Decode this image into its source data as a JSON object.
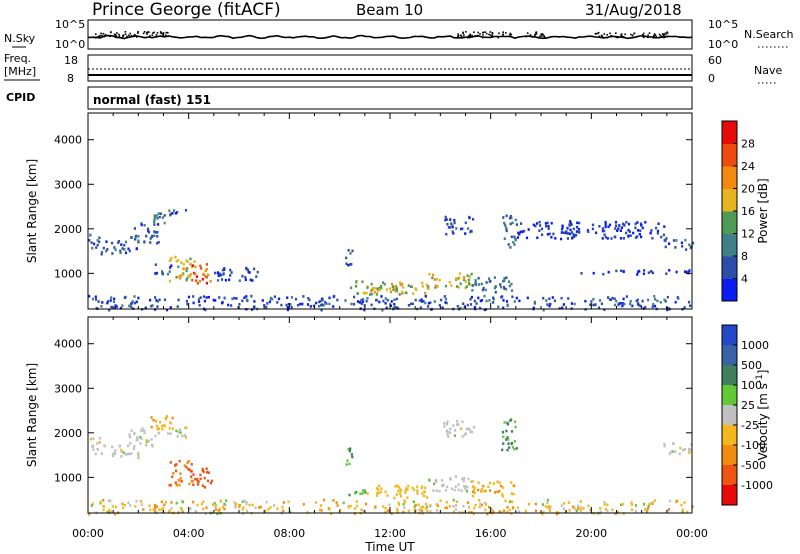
{
  "header": {
    "station": "Prince George (fitACF)",
    "beam": "Beam 10",
    "date": "31/Aug/2018"
  },
  "status_panels": {
    "nsky_label": "N.Sky",
    "nsearch_label": "N.Search",
    "nsky_ticks": [
      "10^5",
      "10^0"
    ],
    "nsearch_ticks": [
      "10^5",
      "10^0"
    ],
    "freq_label": "Freq.",
    "freq_unit": "[MHz]",
    "freq_ticks": [
      "18",
      "8"
    ],
    "nave_label": "Nave",
    "nave_ticks": [
      "60",
      "0"
    ],
    "cpid_label": "CPID",
    "cpid_value": "normal (fast) 151"
  },
  "x_axis": {
    "label": "Time UT",
    "ticks": [
      "00:00",
      "04:00",
      "08:00",
      "12:00",
      "16:00",
      "20:00",
      "00:00"
    ]
  },
  "colors": {
    "power_scale": [
      "#0a1cf0",
      "#2d4ea8",
      "#3f7f8a",
      "#4f9a55",
      "#e6b41e",
      "#f28a12",
      "#ee4b0e",
      "#e60a0a"
    ],
    "velocity_scale": [
      "#2348c8",
      "#3a62a8",
      "#3f7f60",
      "#62c838",
      "#c0c0c0",
      "#f4b81e",
      "#f28c10",
      "#ee5512",
      "#e60a0a"
    ],
    "ground_scatter": "#c0c0c0"
  },
  "chart_data": [
    {
      "type": "heatmap",
      "title": "",
      "xlabel": "Time UT",
      "ylabel": "Slant Range [km]",
      "xlim": [
        0,
        24
      ],
      "ylim": [
        200,
        4600
      ],
      "yticks": [
        "1000",
        "2000",
        "3000",
        "4000"
      ],
      "colorbar": {
        "label": "Power [dB]",
        "ticks": [
          "4",
          "8",
          "12",
          "16",
          "20",
          "24",
          "28"
        ],
        "range": [
          0,
          32
        ]
      },
      "regions": [
        {
          "t0": 0.0,
          "t1": 0.5,
          "r0": 1550,
          "r1": 1950,
          "power": 7
        },
        {
          "t0": 0.5,
          "t1": 2.0,
          "r0": 1450,
          "r1": 1750,
          "power": 6
        },
        {
          "t0": 1.6,
          "t1": 2.8,
          "r0": 1700,
          "r1": 2150,
          "power": 6
        },
        {
          "t0": 2.4,
          "t1": 3.2,
          "r0": 2150,
          "r1": 2450,
          "power": 10
        },
        {
          "t0": 3.0,
          "t1": 3.9,
          "r0": 2300,
          "r1": 2450,
          "power": 6
        },
        {
          "t0": 2.6,
          "t1": 3.4,
          "r0": 1000,
          "r1": 1250,
          "power": 6
        },
        {
          "t0": 3.2,
          "t1": 4.2,
          "r0": 850,
          "r1": 1400,
          "power": 18
        },
        {
          "t0": 4.0,
          "t1": 4.9,
          "r0": 800,
          "r1": 1250,
          "power": 26
        },
        {
          "t0": 4.9,
          "t1": 6.8,
          "r0": 850,
          "r1": 1150,
          "power": 5
        },
        {
          "t0": 10.2,
          "t1": 10.5,
          "r0": 1200,
          "r1": 1700,
          "power": 7
        },
        {
          "t0": 10.3,
          "t1": 13.5,
          "r0": 550,
          "r1": 850,
          "power": 16
        },
        {
          "t0": 11.2,
          "t1": 12.6,
          "r0": 600,
          "r1": 800,
          "power": 19
        },
        {
          "t0": 13.5,
          "t1": 15.2,
          "r0": 700,
          "r1": 1050,
          "power": 17
        },
        {
          "t0": 15.2,
          "t1": 16.9,
          "r0": 600,
          "r1": 950,
          "power": 8
        },
        {
          "t0": 14.1,
          "t1": 15.3,
          "r0": 1900,
          "r1": 2300,
          "power": 6
        },
        {
          "t0": 16.4,
          "t1": 17.0,
          "r0": 1600,
          "r1": 2350,
          "power": 8
        },
        {
          "t0": 17.0,
          "t1": 23.0,
          "r0": 1800,
          "r1": 2200,
          "power": 4
        },
        {
          "t0": 22.8,
          "t1": 24.0,
          "r0": 1550,
          "r1": 1800,
          "power": 6
        },
        {
          "t0": 19.5,
          "t1": 24.0,
          "r0": 1000,
          "r1": 1100,
          "power": 4
        },
        {
          "t0": 0.0,
          "t1": 24.0,
          "r0": 200,
          "r1": 520,
          "power": 6
        }
      ]
    },
    {
      "type": "heatmap",
      "title": "",
      "xlabel": "Time UT",
      "ylabel": "Slant Range [km]",
      "xlim": [
        0,
        24
      ],
      "ylim": [
        200,
        4600
      ],
      "yticks": [
        "1000",
        "2000",
        "3000",
        "4000"
      ],
      "colorbar": {
        "label": "Velocity [m s^-1]",
        "ticks": [
          "1000",
          "500",
          "100",
          "25",
          "-25",
          "-100",
          "-500",
          "-1000"
        ]
      },
      "regions": [
        {
          "t0": 0.0,
          "t1": 0.5,
          "r0": 1550,
          "r1": 1950,
          "velocity": 0
        },
        {
          "t0": 0.5,
          "t1": 2.0,
          "r0": 1450,
          "r1": 1750,
          "velocity": 0
        },
        {
          "t0": 1.6,
          "t1": 2.8,
          "r0": 1700,
          "r1": 2150,
          "velocity": 0
        },
        {
          "t0": 2.4,
          "t1": 3.4,
          "r0": 2100,
          "r1": 2450,
          "velocity": -80
        },
        {
          "t0": 3.0,
          "t1": 3.9,
          "r0": 1900,
          "r1": 2150,
          "velocity": 0
        },
        {
          "t0": 3.2,
          "t1": 4.2,
          "r0": 850,
          "r1": 1400,
          "velocity": -300
        },
        {
          "t0": 4.0,
          "t1": 4.9,
          "r0": 800,
          "r1": 1250,
          "velocity": -400
        },
        {
          "t0": 10.2,
          "t1": 10.5,
          "r0": 1200,
          "r1": 1700,
          "velocity": 80
        },
        {
          "t0": 10.3,
          "t1": 11.0,
          "r0": 600,
          "r1": 800,
          "velocity": 60
        },
        {
          "t0": 11.0,
          "t1": 13.5,
          "r0": 550,
          "r1": 850,
          "velocity": -60
        },
        {
          "t0": 13.5,
          "t1": 15.2,
          "r0": 700,
          "r1": 1050,
          "velocity": 0
        },
        {
          "t0": 15.2,
          "t1": 16.9,
          "r0": 600,
          "r1": 950,
          "velocity": -90
        },
        {
          "t0": 14.1,
          "t1": 15.3,
          "r0": 1900,
          "r1": 2300,
          "velocity": 0
        },
        {
          "t0": 16.4,
          "t1": 17.0,
          "r0": 1600,
          "r1": 2350,
          "velocity": 70
        },
        {
          "t0": 22.8,
          "t1": 24.0,
          "r0": 1550,
          "r1": 1800,
          "velocity": 0
        },
        {
          "t0": 0.0,
          "t1": 24.0,
          "r0": 200,
          "r1": 520,
          "velocity": -60
        }
      ]
    }
  ]
}
